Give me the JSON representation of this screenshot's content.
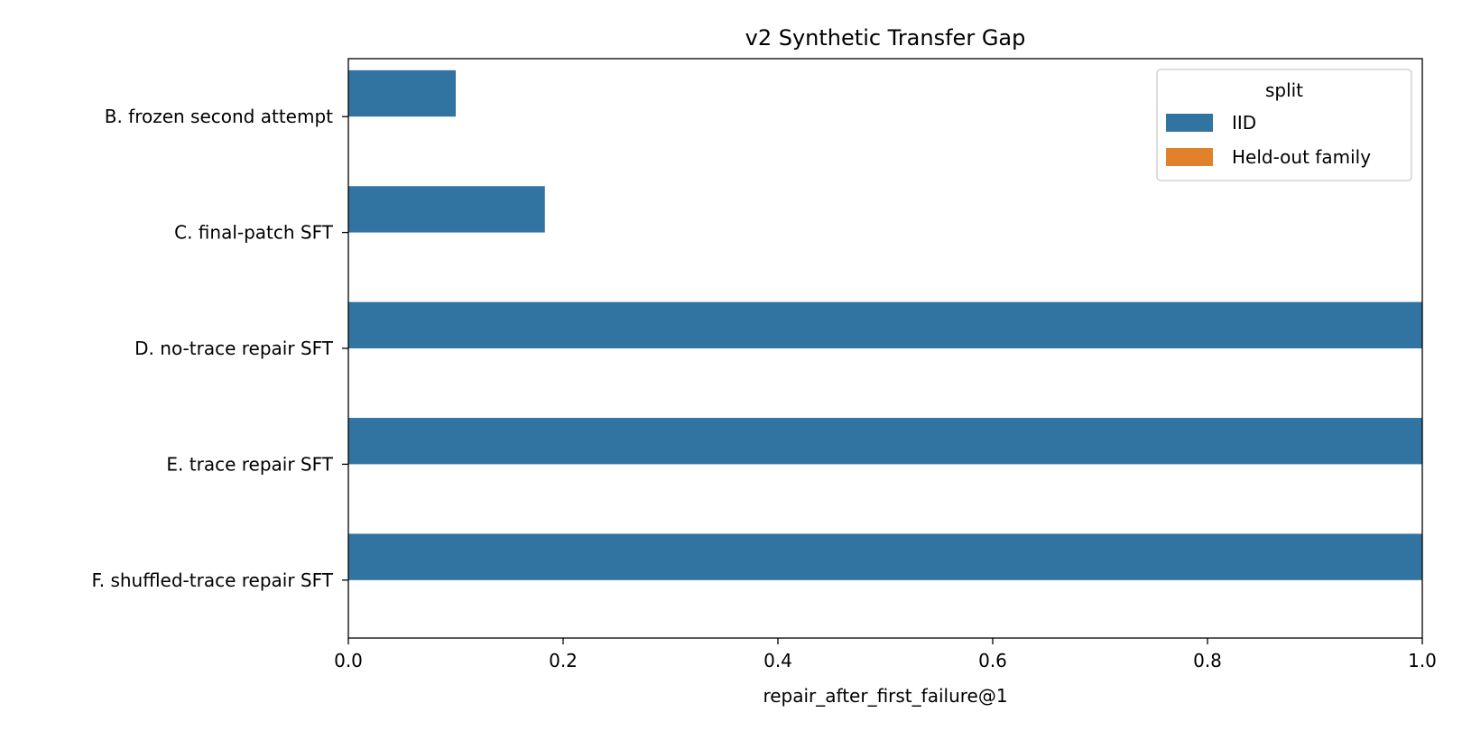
{
  "chart_data": {
    "type": "bar",
    "orientation": "horizontal",
    "title": "v2 Synthetic Transfer Gap",
    "xlabel": "repair_after_first_failure@1",
    "ylabel": "",
    "xlim": [
      0.0,
      1.0
    ],
    "xticks": [
      "0.0",
      "0.2",
      "0.4",
      "0.6",
      "0.8",
      "1.0"
    ],
    "categories": [
      "B. frozen second attempt",
      "C. final-patch SFT",
      "D. no-trace repair SFT",
      "E. trace repair SFT",
      "F. shuffled-trace repair SFT"
    ],
    "legend": {
      "title": "split",
      "placement": "top-right"
    },
    "series": [
      {
        "name": "IID",
        "color": "#3274a1",
        "values": [
          0.1,
          0.183,
          1.0,
          1.0,
          1.0
        ]
      },
      {
        "name": "Held-out family",
        "color": "#e1812c",
        "values": [
          0.0,
          0.0,
          0.0,
          0.0,
          0.0
        ]
      }
    ],
    "grid": false
  }
}
